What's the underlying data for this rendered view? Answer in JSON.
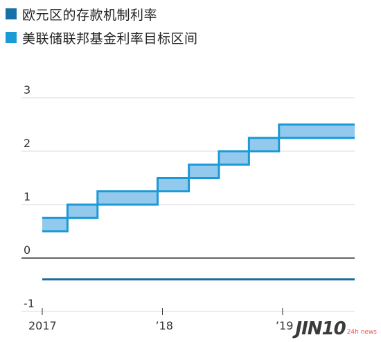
{
  "legend": {
    "items": [
      {
        "label": "欧元区的存款机制利率",
        "color": "#1771a8"
      },
      {
        "label": "美联储联邦基金利率目标区间",
        "color": "#1a9ad6"
      }
    ]
  },
  "colors": {
    "ecb_line": "#1a6b9e",
    "fed_fill": "#93c9ec",
    "fed_stroke": "#1a9ad6",
    "grid": "#d9d9d9",
    "zero_line": "#333333"
  },
  "watermark": {
    "main": "JIN10",
    "side": "24h news"
  },
  "chart_data": {
    "type": "area",
    "title": "",
    "xlabel": "",
    "ylabel": "",
    "xlim": [
      2017.0,
      2019.6
    ],
    "ylim": [
      -1,
      3
    ],
    "yticks": [
      3,
      2,
      1,
      0,
      -1
    ],
    "ytick_labels": [
      "3",
      "2",
      "1",
      "0",
      "-1"
    ],
    "xticks": [
      2017,
      2018,
      2019
    ],
    "xtick_labels": [
      "2017",
      "’18",
      "’19"
    ],
    "grid": true,
    "legend_position": "top-left",
    "series": [
      {
        "name": "欧元区的存款机制利率",
        "kind": "line",
        "x": [
          2017.0,
          2019.6
        ],
        "y": [
          -0.4,
          -0.4
        ]
      },
      {
        "name": "美联储联邦基金利率目标区间",
        "kind": "step-band",
        "x": [
          2017.0,
          2017.21,
          2017.46,
          2017.96,
          2018.22,
          2018.47,
          2018.72,
          2018.97,
          2019.6
        ],
        "lower": [
          0.5,
          0.75,
          1.0,
          1.25,
          1.5,
          1.75,
          2.0,
          2.25
        ],
        "upper": [
          0.75,
          1.0,
          1.25,
          1.5,
          1.75,
          2.0,
          2.25,
          2.5
        ]
      }
    ]
  }
}
